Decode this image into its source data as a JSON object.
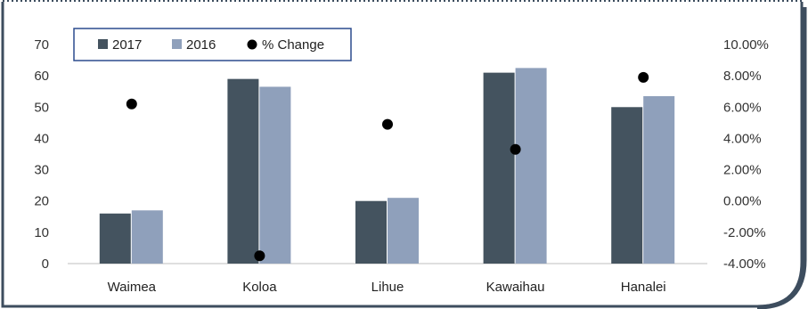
{
  "chart_data": {
    "type": "bar",
    "categories": [
      "Waimea",
      "Koloa",
      "Lihue",
      "Kawaihau",
      "Hanalei"
    ],
    "series": [
      {
        "name": "2017",
        "type": "bar",
        "axis": "left",
        "color": "#44535f",
        "values": [
          16,
          59,
          20,
          61,
          50
        ]
      },
      {
        "name": "2016",
        "type": "bar",
        "axis": "left",
        "color": "#8fa0bb",
        "values": [
          17,
          56.5,
          21,
          62.5,
          53.5
        ]
      },
      {
        "name": "% Change",
        "type": "scatter",
        "axis": "right",
        "color": "#000000",
        "values": [
          6.2,
          -3.5,
          4.9,
          3.3,
          7.9
        ]
      }
    ],
    "y_left": {
      "ticks": [
        "0",
        "10",
        "20",
        "30",
        "40",
        "50",
        "60",
        "70"
      ],
      "ylim": [
        0,
        70
      ]
    },
    "y_right": {
      "ticks": [
        "-4.00%",
        "-2.00%",
        "0.00%",
        "2.00%",
        "4.00%",
        "6.00%",
        "8.00%",
        "10.00%"
      ],
      "ylim": [
        -4,
        10
      ]
    },
    "legend": {
      "placement": "top-left",
      "entries": [
        {
          "label": "2017",
          "marker": "square",
          "color": "#44535f"
        },
        {
          "label": "2016",
          "marker": "square",
          "color": "#8fa0bb"
        },
        {
          "label": "% Change",
          "marker": "circle",
          "color": "#000000"
        }
      ]
    },
    "grid": false,
    "title": "",
    "xlabel": "",
    "ylabel": "",
    "frame_color": "#3d4d5e"
  }
}
